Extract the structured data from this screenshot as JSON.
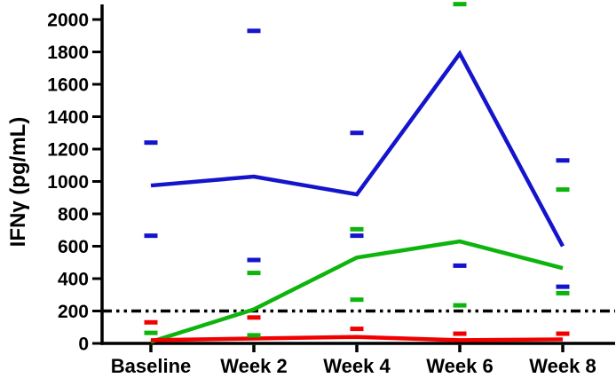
{
  "figure": {
    "y_axis": {
      "label": "IFNγ (pg/mL)",
      "min": 0,
      "max": 2000,
      "tick_step": 200,
      "tick_labels": [
        "0",
        "200",
        "400",
        "600",
        "800",
        "1000",
        "1200",
        "1400",
        "1600",
        "1800",
        "2000"
      ]
    },
    "x_axis": {
      "categories": [
        "Baseline",
        "Week 2",
        "Week 4",
        "Week 6",
        "Week 8"
      ]
    },
    "colors": {
      "blue": "#1414cc",
      "green": "#0db40d",
      "red": "#f20000",
      "axis": "#000000"
    }
  },
  "chart_data": {
    "type": "line",
    "title": "",
    "xlabel": "",
    "ylabel": "IFNγ (pg/mL)",
    "categories": [
      "Baseline",
      "Week 2",
      "Week 4",
      "Week 6",
      "Week 8"
    ],
    "ylim": [
      0,
      2000
    ],
    "ytick_step": 200,
    "grid": false,
    "legend": "none",
    "series": [
      {
        "name": "blue-mean-line",
        "color_key": "blue",
        "values": [
          975,
          1030,
          920,
          1790,
          600
        ]
      },
      {
        "name": "green-mean-line",
        "color_key": "green",
        "values": [
          10,
          210,
          530,
          630,
          465
        ]
      },
      {
        "name": "red-mean-line",
        "color_key": "red",
        "values": [
          20,
          30,
          40,
          20,
          25
        ]
      }
    ],
    "point_markers": [
      {
        "category_index": 0,
        "color_key": "blue",
        "value": 1240
      },
      {
        "category_index": 0,
        "color_key": "blue",
        "value": 665
      },
      {
        "category_index": 0,
        "color_key": "red",
        "value": 130
      },
      {
        "category_index": 0,
        "color_key": "green",
        "value": 65
      },
      {
        "category_index": 1,
        "color_key": "blue",
        "value": 1930
      },
      {
        "category_index": 1,
        "color_key": "blue",
        "value": 515
      },
      {
        "category_index": 1,
        "color_key": "green",
        "value": 435
      },
      {
        "category_index": 1,
        "color_key": "red",
        "value": 160
      },
      {
        "category_index": 1,
        "color_key": "green",
        "value": 50
      },
      {
        "category_index": 2,
        "color_key": "blue",
        "value": 1300
      },
      {
        "category_index": 2,
        "color_key": "green",
        "value": 705
      },
      {
        "category_index": 2,
        "color_key": "blue",
        "value": 665
      },
      {
        "category_index": 2,
        "color_key": "green",
        "value": 270
      },
      {
        "category_index": 2,
        "color_key": "red",
        "value": 90
      },
      {
        "category_index": 3,
        "color_key": "green",
        "value": 2095
      },
      {
        "category_index": 3,
        "color_key": "blue",
        "value": 480
      },
      {
        "category_index": 3,
        "color_key": "green",
        "value": 235
      },
      {
        "category_index": 3,
        "color_key": "red",
        "value": 60
      },
      {
        "category_index": 4,
        "color_key": "blue",
        "value": 1130
      },
      {
        "category_index": 4,
        "color_key": "green",
        "value": 950
      },
      {
        "category_index": 4,
        "color_key": "blue",
        "value": 350
      },
      {
        "category_index": 4,
        "color_key": "green",
        "value": 310
      },
      {
        "category_index": 4,
        "color_key": "red",
        "value": 60
      }
    ],
    "threshold_line": {
      "value": 200,
      "style": "dash-dot-dot",
      "color": "#000000"
    }
  }
}
